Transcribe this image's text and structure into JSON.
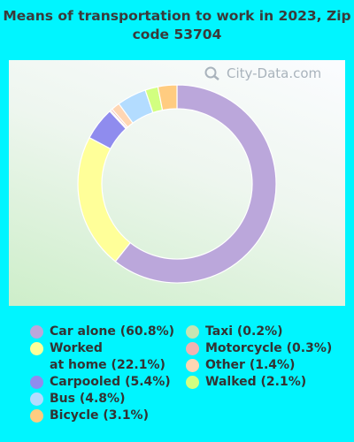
{
  "chart_data": {
    "type": "pie",
    "title": "Means of transportation to work in 2023, Zip code 53704",
    "slices": [
      {
        "label": "Car alone (60.8%)",
        "value": 60.8,
        "color": "#bba7db"
      },
      {
        "label": "Worked\nat home (22.1%)",
        "value": 22.1,
        "color": "#ffff99"
      },
      {
        "label": "Carpooled (5.4%)",
        "value": 5.4,
        "color": "#8f8cee"
      },
      {
        "label": "Taxi (0.2%)",
        "value": 0.2,
        "color": "#c6e5b2"
      },
      {
        "label": "Motorcycle (0.3%)",
        "value": 0.3,
        "color": "#f0b3b1"
      },
      {
        "label": "Other (1.4%)",
        "value": 1.4,
        "color": "#ffd6b3"
      },
      {
        "label": "Bus (4.8%)",
        "value": 4.8,
        "color": "#b3dcff"
      },
      {
        "label": "Walked (2.1%)",
        "value": 2.1,
        "color": "#d2ff80"
      },
      {
        "label": "Bicycle (3.1%)",
        "value": 3.1,
        "color": "#ffcc80"
      }
    ],
    "legend_columns": [
      [
        "Car alone (60.8%)",
        "Worked\nat home (22.1%)",
        "Carpooled (5.4%)",
        "Bus (4.8%)",
        "Bicycle (3.1%)"
      ],
      [
        "Taxi (0.2%)",
        "Motorcycle (0.3%)",
        "Other (1.4%)",
        "Walked (2.1%)"
      ]
    ],
    "legend_position": "bottom"
  },
  "watermark": "City-Data.com",
  "background_color": "#00f5ff"
}
